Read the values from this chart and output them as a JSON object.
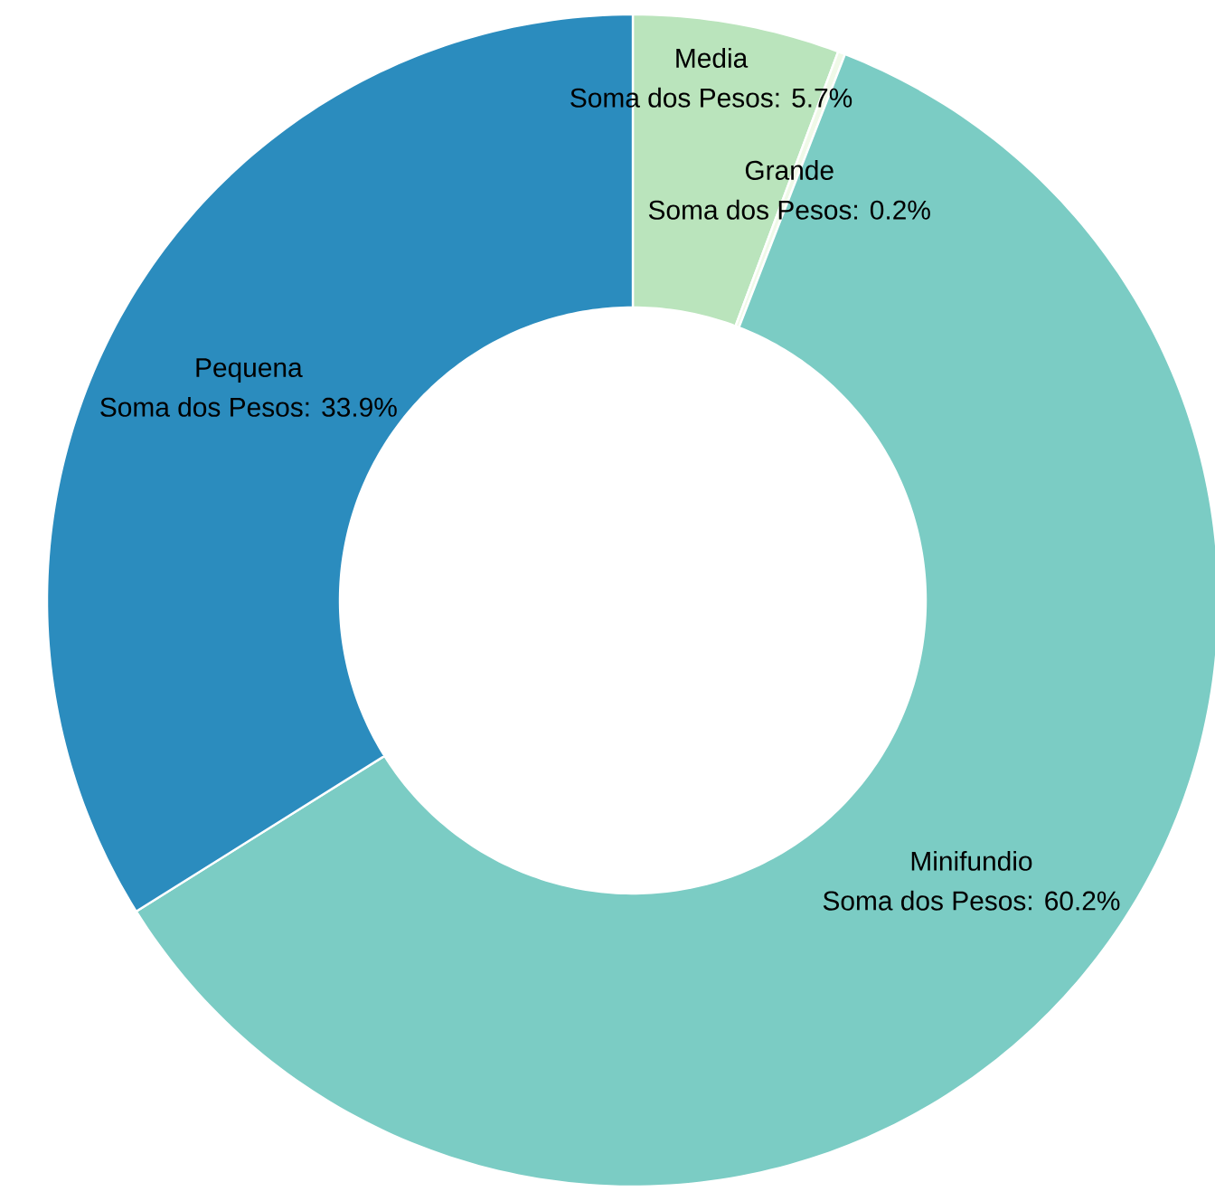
{
  "chart_data": {
    "type": "donut",
    "categories": [
      "Media",
      "Grande",
      "Minifundio",
      "Pequena"
    ],
    "values": [
      5.7,
      0.2,
      60.2,
      33.9
    ],
    "colors": [
      "#bae4bc",
      "#f0f9e8",
      "#7bccc4",
      "#2b8cbe"
    ],
    "value_labels": [
      "Soma dos Pesos: 5.7%",
      "Soma dos Pesos: 0.2%",
      "Soma dos Pesos: 60.2%",
      "Soma dos Pesos: 33.9%"
    ]
  }
}
